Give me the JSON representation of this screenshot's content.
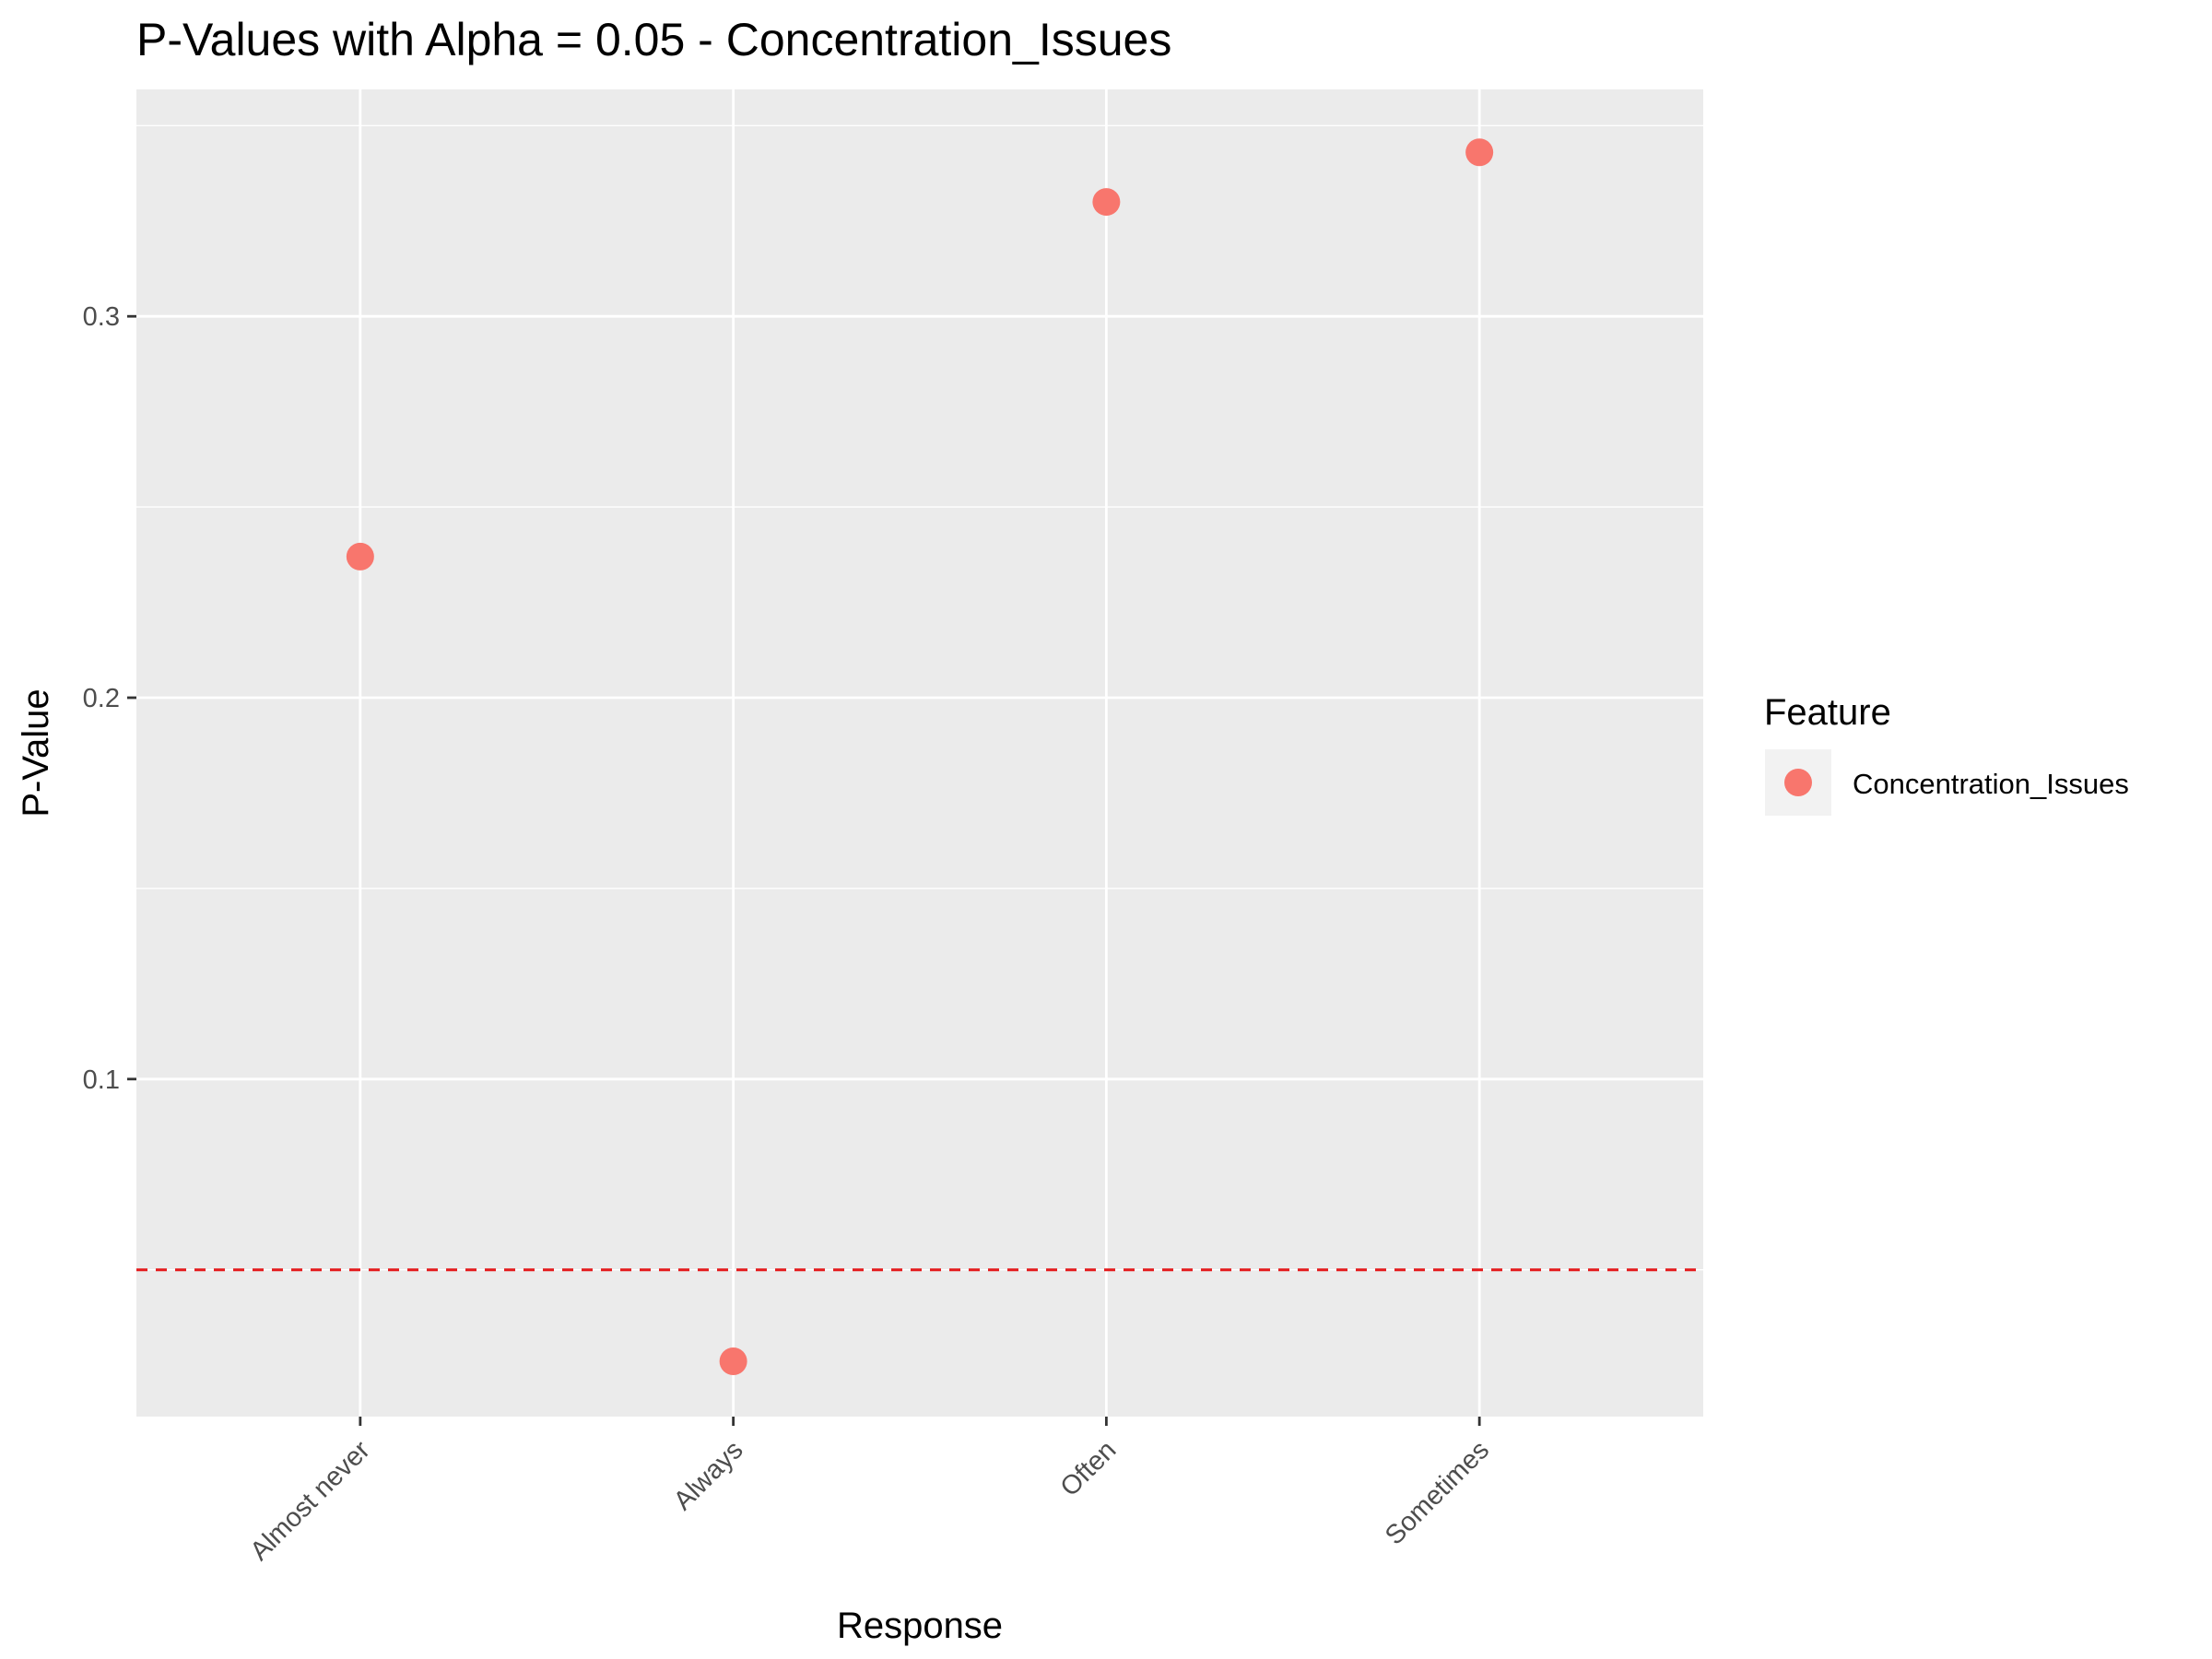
{
  "chart_data": {
    "type": "scatter",
    "title": "P-Values with Alpha = 0.05 - Concentration_Issues",
    "xlabel": "Response",
    "ylabel": "P-Value",
    "categories": [
      "Almost never",
      "Always",
      "Often",
      "Sometimes"
    ],
    "series": [
      {
        "name": "Concentration_Issues",
        "color": "#F8766D",
        "values": [
          0.237,
          0.026,
          0.33,
          0.343
        ]
      }
    ],
    "yticks": [
      0.1,
      0.2,
      0.3
    ],
    "ytick_labels": [
      "0.1",
      "0.2",
      "0.3"
    ],
    "ylim": [
      0.0115,
      0.3595
    ],
    "reference_line": {
      "y": 0.05,
      "color": "#E41A1C",
      "style": "dashed"
    },
    "legend": {
      "title": "Feature",
      "placement": "right"
    },
    "grid": true,
    "panel_background": "#EBEBEB"
  }
}
